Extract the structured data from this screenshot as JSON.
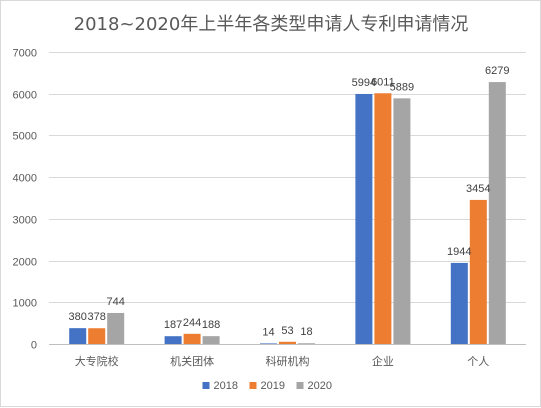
{
  "chart_data": {
    "type": "bar",
    "title": "2018~2020年上半年各类型申请人专利申请情况",
    "xlabel": "",
    "ylabel": "",
    "categories": [
      "大专院校",
      "机关团体",
      "科研机构",
      "企业",
      "个人"
    ],
    "series": [
      {
        "name": "2018",
        "color": "#4472c4",
        "values": [
          380,
          187,
          14,
          5994,
          1944
        ]
      },
      {
        "name": "2019",
        "color": "#ed7d31",
        "values": [
          378,
          244,
          53,
          6011,
          3454
        ]
      },
      {
        "name": "2020",
        "color": "#a5a5a5",
        "values": [
          744,
          188,
          18,
          5889,
          6279
        ]
      }
    ],
    "ylim": [
      0,
      7000
    ],
    "yticks": [
      0,
      1000,
      2000,
      3000,
      4000,
      5000,
      6000,
      7000
    ],
    "grid": true,
    "legend": "bottom"
  }
}
